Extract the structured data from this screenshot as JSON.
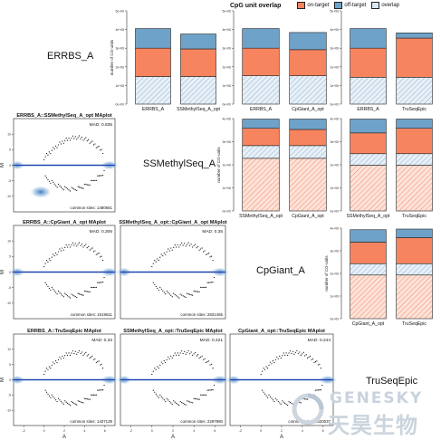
{
  "figure": {
    "legend": {
      "title": "CpG unit overlap",
      "items": [
        {
          "label": "on-target",
          "color": "#f6845f"
        },
        {
          "label": "off-target",
          "color": "#6fa2c9"
        },
        {
          "label": "overlap",
          "color": "#dbe7f0"
        }
      ]
    },
    "sample_labels": [
      "ERRBS_A",
      "SSMethylSeq_A",
      "CpGiant_A",
      "TruSeqEpic"
    ],
    "watermark": {
      "en": "GENESKY",
      "cn": "天昊生物"
    }
  },
  "chart_data": [
    {
      "type": "bar",
      "panel": "bar-errbs-ssmethyl",
      "ylabel": "number of CG-units",
      "ylim": [
        0,
        5000000
      ],
      "yticks": [
        "0e+00",
        "1e+06",
        "2e+06",
        "3e+06",
        "4e+06",
        "5e+06"
      ],
      "categories": [
        "ERRBS_A",
        "SSMethylSeq_A_opt"
      ],
      "series": [
        {
          "name": "overlap",
          "values": [
            1480000,
            1480000
          ]
        },
        {
          "name": "on-target",
          "values": [
            1520000,
            1480000
          ]
        },
        {
          "name": "off-target",
          "values": [
            1050000,
            800000
          ]
        }
      ]
    },
    {
      "type": "bar",
      "panel": "bar-errbs-cpgiant",
      "ylabel": "",
      "ylim": [
        0,
        5000000
      ],
      "yticks": [
        "0e+00",
        "1e+06",
        "2e+06",
        "3e+06",
        "4e+06",
        "5e+06"
      ],
      "categories": [
        "ERRBS_A",
        "CpGiant_A_opt"
      ],
      "series": [
        {
          "name": "overlap",
          "values": [
            1520000,
            1520000
          ]
        },
        {
          "name": "on-target",
          "values": [
            1480000,
            1400000
          ]
        },
        {
          "name": "off-target",
          "values": [
            1050000,
            920000
          ]
        }
      ]
    },
    {
      "type": "bar",
      "panel": "bar-errbs-truseq",
      "ylabel": "",
      "ylim": [
        0,
        5000000
      ],
      "yticks": [
        "0e+00",
        "1e+06",
        "2e+06",
        "3e+06",
        "4e+06",
        "5e+06"
      ],
      "categories": [
        "ERRBS_A",
        "TruSeqEpic"
      ],
      "series": [
        {
          "name": "overlap",
          "values": [
            1440000,
            1440000
          ]
        },
        {
          "name": "on-target",
          "values": [
            1560000,
            2100000
          ]
        },
        {
          "name": "off-target",
          "values": [
            1050000,
            280000
          ]
        }
      ]
    },
    {
      "type": "bar",
      "panel": "bar-ssmethyl-cpgiant",
      "ylabel": "number of CG-units",
      "ylim": [
        0,
        4000000
      ],
      "yticks": [
        "0e+00",
        "1e+06",
        "2e+06",
        "3e+06",
        "4e+06"
      ],
      "categories": [
        "SSMethylSeq_A_opt",
        "CpGiant_A_opt"
      ],
      "series": [
        {
          "name": "on-target",
          "values": [
            2280000,
            2280000
          ]
        },
        {
          "name": "overlap",
          "values": [
            550000,
            550000
          ]
        },
        {
          "name": "on-target",
          "values": [
            750000,
            700000
          ]
        },
        {
          "name": "off-target",
          "values": [
            400000,
            450000
          ]
        }
      ]
    },
    {
      "type": "bar",
      "panel": "bar-ssmethyl-truseq",
      "ylabel": "",
      "ylim": [
        0,
        4000000
      ],
      "yticks": [
        "0e+00",
        "1e+06",
        "2e+06",
        "3e+06",
        "4e+06"
      ],
      "categories": [
        "SSMethylSeq_A_opt",
        "TruSeqEpic"
      ],
      "series": [
        {
          "name": "on-target",
          "values": [
            1980000,
            1980000
          ]
        },
        {
          "name": "overlap",
          "values": [
            500000,
            500000
          ]
        },
        {
          "name": "on-target",
          "values": [
            900000,
            1100000
          ]
        },
        {
          "name": "off-target",
          "values": [
            600000,
            400000
          ]
        }
      ]
    },
    {
      "type": "bar",
      "panel": "bar-cpgiant-truseq",
      "ylabel": "number of CG-units",
      "ylim": [
        0,
        4000000
      ],
      "yticks": [
        "0e+00",
        "1e+06",
        "2e+06",
        "3e+06",
        "4e+06"
      ],
      "categories": [
        "CpGiant_A_opt",
        "TruSeqEpic"
      ],
      "series": [
        {
          "name": "on-target",
          "values": [
            1930000,
            1930000
          ]
        },
        {
          "name": "overlap",
          "values": [
            500000,
            500000
          ]
        },
        {
          "name": "on-target",
          "values": [
            950000,
            1150000
          ]
        },
        {
          "name": "off-target",
          "values": [
            550000,
            380000
          ]
        }
      ]
    },
    {
      "type": "scatter",
      "panel": "ma-errbs-ssmethyl",
      "title": "ERRBS_A::SSMethylSeq_A_opt MAplot",
      "mad": "MAD: 0.835",
      "sites": "common sites: 1480661",
      "xlabel": "",
      "ylabel": "M",
      "ylim": [
        -15,
        15
      ],
      "yticks": [
        "-10",
        "-5",
        "0",
        "5",
        "10"
      ]
    },
    {
      "type": "scatter",
      "panel": "ma-errbs-cpgiant",
      "title": "ERRBS_A::CpGiant_A_opt MAplot",
      "mad": "MAD: 0.306",
      "sites": "common sites: 1519611",
      "xlabel": "",
      "ylabel": "M",
      "ylim": [
        -15,
        15
      ],
      "yticks": [
        "-10",
        "-5",
        "0",
        "5",
        "10"
      ]
    },
    {
      "type": "scatter",
      "panel": "ma-ssmethyl-cpgiant",
      "title": "SSMethylSeq_A_opt::CpGiant_A_opt MAplot",
      "mad": "MAD: 0.35",
      "sites": "common sites: 2831455",
      "xlabel": "",
      "ylabel": "",
      "ylim": [
        -15,
        15
      ],
      "yticks": []
    },
    {
      "type": "scatter",
      "panel": "ma-errbs-truseq",
      "title": "ERRBS_A::TruSeqEpic MAplot",
      "mad": "MAD: 0.33",
      "sites": "common sites: 1437139",
      "xlabel": "A",
      "ylabel": "M",
      "ylim": [
        -15,
        15
      ],
      "yticks": [
        "-10",
        "-5",
        "0",
        "5",
        "10"
      ],
      "xticks": [
        "-2",
        "0",
        "2",
        "4",
        "6"
      ]
    },
    {
      "type": "scatter",
      "panel": "ma-ssmethyl-truseq",
      "title": "SSMethylSeq_A_opt::TruSeqEpic MAplot",
      "mad": "MAD: 0.421",
      "sites": "common sites: 2297980",
      "xlabel": "A",
      "ylabel": "",
      "ylim": [
        -15,
        15
      ],
      "yticks": [],
      "xticks": [
        "-2",
        "0",
        "2",
        "4",
        "6"
      ]
    },
    {
      "type": "scatter",
      "panel": "ma-cpgiant-truseq",
      "title": "CpGiant_A_opt::TruSeqEpic MAplot",
      "mad": "MAD: 0.244",
      "sites": "common sites: 2320037",
      "xlabel": "A",
      "ylabel": "",
      "ylim": [
        -15,
        15
      ],
      "yticks": [],
      "xticks": [
        "-2",
        "0",
        "2",
        "4",
        "6"
      ]
    }
  ]
}
